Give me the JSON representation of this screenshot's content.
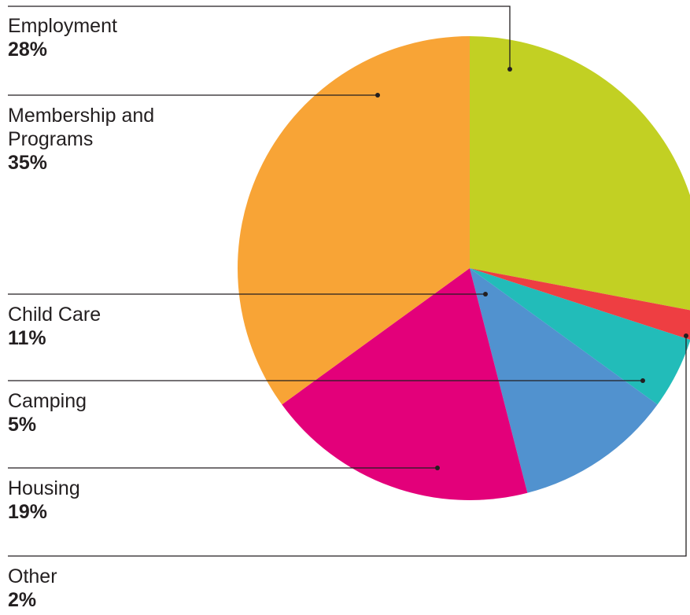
{
  "chart_data": {
    "type": "pie",
    "slices": [
      {
        "label": "Employment",
        "value": 28,
        "value_label": "28%",
        "color": "#c2d023"
      },
      {
        "label": "Other",
        "value": 2,
        "value_label": "2%",
        "color": "#ee3e42"
      },
      {
        "label": "Camping",
        "value": 5,
        "value_label": "5%",
        "color": "#22bcb9"
      },
      {
        "label": "Child Care",
        "value": 11,
        "value_label": "11%",
        "color": "#5192cf"
      },
      {
        "label": "Housing",
        "value": 19,
        "value_label": "19%",
        "color": "#e3007a"
      },
      {
        "label": "Membership and Programs",
        "value": 35,
        "value_label": "35%",
        "color": "#f8a436"
      }
    ],
    "start_position": "top",
    "direction": "clockwise",
    "labels_position": "left, with leader lines"
  },
  "labels": {
    "employment": {
      "name": "Employment",
      "pct": "28%"
    },
    "membership": {
      "name_line1": "Membership and",
      "name_line2": "Programs",
      "pct": "35%"
    },
    "child_care": {
      "name": "Child Care",
      "pct": "11%"
    },
    "camping": {
      "name": "Camping",
      "pct": "5%"
    },
    "housing": {
      "name": "Housing",
      "pct": "19%"
    },
    "other": {
      "name": "Other",
      "pct": "2%"
    }
  }
}
